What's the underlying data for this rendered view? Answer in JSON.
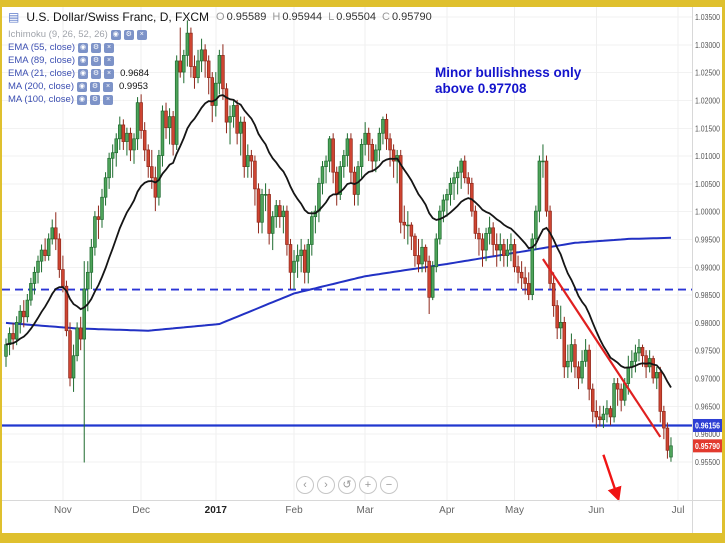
{
  "frame": {
    "border_color": "#dfc02e"
  },
  "icons": {
    "chart": "▤",
    "eye": "◉",
    "settings": "⚙",
    "close": "×"
  },
  "header": {
    "symbol_title": "U.S. Dollar/Swiss Franc, D, FXCM",
    "ohlc": {
      "o_label": "O",
      "o": "0.95589",
      "h_label": "H",
      "h": "0.95944",
      "l_label": "L",
      "l": "0.95504",
      "c_label": "C",
      "c": "0.95790"
    }
  },
  "legend": {
    "rows": [
      {
        "name": "Ichimoku (9, 26, 52, 26)",
        "value": "",
        "muted": true
      },
      {
        "name": "EMA (55, close)",
        "value": ""
      },
      {
        "name": "EMA (89, close)",
        "value": ""
      },
      {
        "name": "EMA (21, close)",
        "value": "0.9684"
      },
      {
        "name": "MA (200, close)",
        "value": "0.9953"
      },
      {
        "name": "MA (100, close)",
        "value": ""
      }
    ]
  },
  "annotation": {
    "line1": "Minor bullishness only",
    "line2": "above 0.97708",
    "color": "#1414cc"
  },
  "nav": {
    "buttons": [
      {
        "name": "scroll-left",
        "glyph": "‹"
      },
      {
        "name": "scroll-right",
        "glyph": "›"
      },
      {
        "name": "reset-scale",
        "glyph": "↺"
      },
      {
        "name": "zoom-in",
        "glyph": "+"
      },
      {
        "name": "zoom-out",
        "glyph": "−"
      }
    ]
  },
  "chart_data": {
    "type": "candlestick",
    "title": "U.S. Dollar/Swiss Franc, D, FXCM",
    "symbol": "USD/CHF",
    "timeframe": "D",
    "y_axis": {
      "min": 0.955,
      "max": 1.035,
      "tick_step": 0.005,
      "tick_labels": [
        "1.03500",
        "1.03000",
        "1.02500",
        "1.02000",
        "1.01500",
        "1.01000",
        "1.00500",
        "1.00000",
        "0.99500",
        "0.99000",
        "0.98500",
        "0.98000",
        "0.97500",
        "0.97000",
        "0.96500",
        "0.96000",
        "0.95500"
      ]
    },
    "x_axis": {
      "month_ticks": [
        {
          "label": "Nov",
          "index": 16
        },
        {
          "label": "Dec",
          "index": 38
        },
        {
          "label": "2017",
          "index": 59,
          "bold": true
        },
        {
          "label": "Feb",
          "index": 81
        },
        {
          "label": "Mar",
          "index": 101
        },
        {
          "label": "Apr",
          "index": 124
        },
        {
          "label": "May",
          "index": 143
        },
        {
          "label": "Jun",
          "index": 166
        },
        {
          "label": "Jul",
          "index": 189
        }
      ]
    },
    "style": {
      "up": {
        "body": "#4ea35a",
        "border": "#1d6b2e"
      },
      "down": {
        "body": "#cf4532",
        "border": "#8f271a"
      }
    },
    "candles": [
      [
        0.974,
        0.9772,
        0.9721,
        0.9761
      ],
      [
        0.9761,
        0.9792,
        0.9742,
        0.9781
      ],
      [
        0.9781,
        0.98,
        0.9752,
        0.9771
      ],
      [
        0.9771,
        0.9812,
        0.976,
        0.9801
      ],
      [
        0.9801,
        0.9832,
        0.9781,
        0.9821
      ],
      [
        0.9821,
        0.9841,
        0.9792,
        0.9811
      ],
      [
        0.9811,
        0.9852,
        0.9801,
        0.9841
      ],
      [
        0.9841,
        0.9881,
        0.9831,
        0.9871
      ],
      [
        0.9871,
        0.9901,
        0.9851,
        0.9891
      ],
      [
        0.9891,
        0.9921,
        0.9871,
        0.9911
      ],
      [
        0.9911,
        0.9941,
        0.9891,
        0.9931
      ],
      [
        0.9931,
        0.9952,
        0.9911,
        0.9921
      ],
      [
        0.9921,
        0.9961,
        0.9912,
        0.9951
      ],
      [
        0.9951,
        0.9986,
        0.9941,
        0.9971
      ],
      [
        0.9971,
        0.9999,
        0.9931,
        0.9951
      ],
      [
        0.9951,
        0.9961,
        0.9881,
        0.9896
      ],
      [
        0.9896,
        0.9921,
        0.9855,
        0.9866
      ],
      [
        0.9866,
        0.9876,
        0.9776,
        0.9786
      ],
      [
        0.9786,
        0.9801,
        0.9686,
        0.9701
      ],
      [
        0.9701,
        0.9761,
        0.9676,
        0.9741
      ],
      [
        0.9741,
        0.9801,
        0.9731,
        0.9791
      ],
      [
        0.9791,
        0.9811,
        0.9751,
        0.9771
      ],
      [
        0.9771,
        0.9911,
        0.9549,
        0.9861
      ],
      [
        0.9861,
        0.9911,
        0.9821,
        0.9891
      ],
      [
        0.9891,
        0.9951,
        0.9861,
        0.9936
      ],
      [
        0.9936,
        1.0001,
        0.9921,
        0.9991
      ],
      [
        0.9991,
        1.0011,
        0.9951,
        0.9986
      ],
      [
        0.9986,
        1.0041,
        0.9971,
        1.0026
      ],
      [
        1.0026,
        1.0071,
        1.0011,
        1.0061
      ],
      [
        1.0061,
        1.0106,
        1.0041,
        1.0096
      ],
      [
        1.0096,
        1.0121,
        1.0061,
        1.0106
      ],
      [
        1.0106,
        1.0141,
        1.0081,
        1.0131
      ],
      [
        1.0131,
        1.0171,
        1.0111,
        1.0156
      ],
      [
        1.0156,
        1.0166,
        1.0111,
        1.0126
      ],
      [
        1.0126,
        1.0151,
        1.0101,
        1.0141
      ],
      [
        1.0141,
        1.0151,
        1.0091,
        1.0111
      ],
      [
        1.0111,
        1.0141,
        1.0086,
        1.0131
      ],
      [
        1.0131,
        1.0206,
        1.0111,
        1.0196
      ],
      [
        1.0196,
        1.0211,
        1.0131,
        1.0146
      ],
      [
        1.0146,
        1.0161,
        1.0091,
        1.0111
      ],
      [
        1.0111,
        1.0121,
        1.0061,
        1.0081
      ],
      [
        1.0081,
        1.0111,
        1.0041,
        1.0061
      ],
      [
        1.0061,
        1.0081,
        1.0001,
        1.0026
      ],
      [
        1.0026,
        1.0111,
        1.0011,
        1.0101
      ],
      [
        1.0101,
        1.0191,
        1.0081,
        1.0181
      ],
      [
        1.0181,
        1.0196,
        1.0131,
        1.0151
      ],
      [
        1.0151,
        1.0186,
        1.0121,
        1.0171
      ],
      [
        1.0171,
        1.0181,
        1.0101,
        1.0121
      ],
      [
        1.0121,
        1.0281,
        1.0111,
        1.0271
      ],
      [
        1.0271,
        1.0331,
        1.0241,
        1.0251
      ],
      [
        1.0251,
        1.0291,
        1.0231,
        1.0281
      ],
      [
        1.0281,
        1.0344,
        1.0261,
        1.0321
      ],
      [
        1.0321,
        1.0331,
        1.0241,
        1.0261
      ],
      [
        1.0261,
        1.0281,
        1.0221,
        1.0241
      ],
      [
        1.0241,
        1.0291,
        1.0231,
        1.0271
      ],
      [
        1.0271,
        1.0311,
        1.0251,
        1.0291
      ],
      [
        1.0291,
        1.0301,
        1.0241,
        1.0271
      ],
      [
        1.0271,
        1.0281,
        1.0211,
        1.0241
      ],
      [
        1.0241,
        1.0251,
        1.0161,
        1.0191
      ],
      [
        1.0191,
        1.0251,
        1.0171,
        1.0231
      ],
      [
        1.0231,
        1.0291,
        1.0211,
        1.0281
      ],
      [
        1.0281,
        1.0301,
        1.0201,
        1.0221
      ],
      [
        1.0221,
        1.0231,
        1.0141,
        1.0161
      ],
      [
        1.0161,
        1.0191,
        1.0121,
        1.0171
      ],
      [
        1.0171,
        1.0201,
        1.0151,
        1.0191
      ],
      [
        1.0191,
        1.0201,
        1.0121,
        1.0141
      ],
      [
        1.0141,
        1.0171,
        1.0101,
        1.0161
      ],
      [
        1.0161,
        1.0171,
        1.0061,
        1.0081
      ],
      [
        1.0081,
        1.0121,
        1.0061,
        1.0101
      ],
      [
        1.0101,
        1.0111,
        1.0061,
        1.0091
      ],
      [
        1.0091,
        1.0101,
        1.0011,
        1.0041
      ],
      [
        1.0041,
        1.0051,
        0.9961,
        0.9981
      ],
      [
        0.9981,
        1.0041,
        0.9961,
        1.0031
      ],
      [
        1.0031,
        1.0051,
        1.0001,
        1.0031
      ],
      [
        1.0031,
        1.0041,
        0.9941,
        0.9961
      ],
      [
        0.9961,
        1.0001,
        0.9931,
        0.9991
      ],
      [
        0.9991,
        1.0021,
        0.9971,
        1.0011
      ],
      [
        1.0011,
        1.0021,
        0.9971,
        0.9991
      ],
      [
        0.9991,
        1.0011,
        0.9961,
        1.0001
      ],
      [
        1.0001,
        1.0011,
        0.9921,
        0.9941
      ],
      [
        0.9941,
        0.9951,
        0.9861,
        0.9891
      ],
      [
        0.9891,
        0.9931,
        0.9861,
        0.9911
      ],
      [
        0.9911,
        0.9941,
        0.9881,
        0.9921
      ],
      [
        0.9921,
        0.9951,
        0.9891,
        0.9931
      ],
      [
        0.9931,
        0.9941,
        0.9871,
        0.9891
      ],
      [
        0.9891,
        0.9951,
        0.9871,
        0.9941
      ],
      [
        0.9941,
        1.0001,
        0.9921,
        0.9991
      ],
      [
        0.9991,
        1.0011,
        0.9961,
        1.0001
      ],
      [
        1.0001,
        1.0061,
        0.9981,
        1.0051
      ],
      [
        1.0051,
        1.0091,
        1.0031,
        1.0081
      ],
      [
        1.0081,
        1.0101,
        1.0051,
        1.0091
      ],
      [
        1.0091,
        1.0136,
        1.0071,
        1.0131
      ],
      [
        1.0131,
        1.0141,
        1.0051,
        1.0071
      ],
      [
        1.0071,
        1.0081,
        1.0011,
        1.0031
      ],
      [
        1.0031,
        1.0091,
        1.0021,
        1.0081
      ],
      [
        1.0081,
        1.0111,
        1.0061,
        1.0101
      ],
      [
        1.0101,
        1.0141,
        1.0081,
        1.0131
      ],
      [
        1.0131,
        1.0141,
        1.0051,
        1.0071
      ],
      [
        1.0071,
        1.0081,
        1.0011,
        1.0031
      ],
      [
        1.0031,
        1.0091,
        1.0011,
        1.0081
      ],
      [
        1.0081,
        1.0131,
        1.0061,
        1.0121
      ],
      [
        1.0121,
        1.0161,
        1.0101,
        1.0141
      ],
      [
        1.0141,
        1.0151,
        1.0091,
        1.0121
      ],
      [
        1.0121,
        1.0131,
        1.0071,
        1.0091
      ],
      [
        1.0091,
        1.0121,
        1.0071,
        1.0111
      ],
      [
        1.0111,
        1.0151,
        1.0091,
        1.0141
      ],
      [
        1.0141,
        1.0171,
        1.0121,
        1.0166
      ],
      [
        1.0166,
        1.0176,
        1.0111,
        1.0131
      ],
      [
        1.0131,
        1.0141,
        1.0081,
        1.0111
      ],
      [
        1.0111,
        1.0121,
        1.0061,
        1.0091
      ],
      [
        1.0091,
        1.0111,
        1.0051,
        1.0101
      ],
      [
        1.0101,
        1.0111,
        0.9961,
        0.9981
      ],
      [
        0.9981,
        1.0011,
        0.9951,
        0.9976
      ],
      [
        0.9976,
        1.0001,
        0.9941,
        0.9976
      ],
      [
        0.9976,
        0.9981,
        0.9931,
        0.9956
      ],
      [
        0.9956,
        0.9961,
        0.9901,
        0.9921
      ],
      [
        0.9921,
        0.9951,
        0.9891,
        0.9906
      ],
      [
        0.9906,
        0.9951,
        0.9891,
        0.9936
      ],
      [
        0.9936,
        0.9941,
        0.9891,
        0.9911
      ],
      [
        0.9911,
        0.9921,
        0.9816,
        0.9846
      ],
      [
        0.9846,
        0.9911,
        0.9841,
        0.9901
      ],
      [
        0.9901,
        0.9961,
        0.9891,
        0.9951
      ],
      [
        0.9951,
        1.0011,
        0.9941,
        1.0001
      ],
      [
        1.0001,
        1.0031,
        0.9981,
        1.0021
      ],
      [
        1.0021,
        1.0041,
        0.9991,
        1.0031
      ],
      [
        1.0031,
        1.0061,
        1.0011,
        1.0051
      ],
      [
        1.0051,
        1.0071,
        1.0021,
        1.0061
      ],
      [
        1.0061,
        1.0081,
        1.0031,
        1.0071
      ],
      [
        1.0071,
        1.0096,
        1.0041,
        1.0091
      ],
      [
        1.0091,
        1.0101,
        1.0051,
        1.0061
      ],
      [
        1.0061,
        1.0071,
        1.0031,
        1.0051
      ],
      [
        1.0051,
        1.0061,
        0.9991,
        1.0001
      ],
      [
        1.0001,
        1.0011,
        0.9951,
        0.9961
      ],
      [
        0.9961,
        0.9971,
        0.9921,
        0.9951
      ],
      [
        0.9951,
        0.9961,
        0.9901,
        0.9931
      ],
      [
        0.9931,
        0.9971,
        0.9911,
        0.9961
      ],
      [
        0.9961,
        0.9991,
        0.9941,
        0.9971
      ],
      [
        0.9971,
        0.9981,
        0.9921,
        0.9941
      ],
      [
        0.9941,
        0.9961,
        0.9901,
        0.9931
      ],
      [
        0.9931,
        0.9961,
        0.9911,
        0.9941
      ],
      [
        0.9941,
        0.9951,
        0.9901,
        0.9921
      ],
      [
        0.9921,
        0.9951,
        0.9901,
        0.9931
      ],
      [
        0.9931,
        0.9961,
        0.9911,
        0.9941
      ],
      [
        0.9941,
        0.9951,
        0.9891,
        0.9901
      ],
      [
        0.9901,
        0.9921,
        0.9871,
        0.9891
      ],
      [
        0.9891,
        0.9911,
        0.9861,
        0.9881
      ],
      [
        0.9881,
        0.9901,
        0.9851,
        0.9871
      ],
      [
        0.9871,
        0.9891,
        0.9841,
        0.9851
      ],
      [
        0.9851,
        0.9961,
        0.9841,
        0.9951
      ],
      [
        0.9951,
        1.0011,
        0.9931,
        1.0001
      ],
      [
        1.0001,
        1.0101,
        0.9981,
        1.0091
      ],
      [
        1.0091,
        1.0121,
        1.0061,
        1.0091
      ],
      [
        1.0091,
        1.0101,
        0.9991,
        1.0001
      ],
      [
        1.0001,
        1.0011,
        0.9861,
        0.9871
      ],
      [
        0.9871,
        0.9891,
        0.9811,
        0.9831
      ],
      [
        0.9831,
        0.9841,
        0.9771,
        0.9791
      ],
      [
        0.9791,
        0.9831,
        0.9771,
        0.9801
      ],
      [
        0.9801,
        0.9811,
        0.9701,
        0.9721
      ],
      [
        0.9721,
        0.9761,
        0.9701,
        0.9731
      ],
      [
        0.9731,
        0.9781,
        0.9711,
        0.9761
      ],
      [
        0.9761,
        0.9771,
        0.9701,
        0.9721
      ],
      [
        0.9721,
        0.9731,
        0.9681,
        0.9701
      ],
      [
        0.9701,
        0.9751,
        0.9691,
        0.9731
      ],
      [
        0.9731,
        0.9771,
        0.9721,
        0.9751
      ],
      [
        0.9751,
        0.9761,
        0.9661,
        0.9681
      ],
      [
        0.9681,
        0.9691,
        0.9621,
        0.9641
      ],
      [
        0.9641,
        0.9661,
        0.9611,
        0.9631
      ],
      [
        0.9631,
        0.9651,
        0.9614,
        0.9626
      ],
      [
        0.9626,
        0.9651,
        0.9611,
        0.9636
      ],
      [
        0.9636,
        0.9661,
        0.9621,
        0.9646
      ],
      [
        0.9646,
        0.9651,
        0.9616,
        0.9631
      ],
      [
        0.9631,
        0.9701,
        0.9621,
        0.9691
      ],
      [
        0.9691,
        0.9701,
        0.9651,
        0.9681
      ],
      [
        0.9681,
        0.9691,
        0.9641,
        0.9661
      ],
      [
        0.9661,
        0.9701,
        0.9651,
        0.9691
      ],
      [
        0.9691,
        0.9741,
        0.9671,
        0.9721
      ],
      [
        0.9721,
        0.9751,
        0.9701,
        0.9731
      ],
      [
        0.9731,
        0.9761,
        0.9711,
        0.9746
      ],
      [
        0.9746,
        0.9771,
        0.9731,
        0.9756
      ],
      [
        0.9756,
        0.9761,
        0.9721,
        0.9741
      ],
      [
        0.9741,
        0.9751,
        0.9701,
        0.9721
      ],
      [
        0.9721,
        0.9751,
        0.9711,
        0.9736
      ],
      [
        0.9736,
        0.9741,
        0.9691,
        0.9701
      ],
      [
        0.9701,
        0.9721,
        0.9681,
        0.9711
      ],
      [
        0.9711,
        0.9721,
        0.9621,
        0.9641
      ],
      [
        0.9641,
        0.9651,
        0.9591,
        0.9611
      ],
      [
        0.9611,
        0.9621,
        0.9556,
        0.9571
      ],
      [
        0.95589,
        0.95944,
        0.95504,
        0.9579
      ]
    ],
    "overlays": {
      "ema21": {
        "name": "EMA (21, close)",
        "period": 21,
        "color": "#151515",
        "last_value": 0.9684
      },
      "ma200": {
        "name": "MA (200, close)",
        "period": 200,
        "color": "#2231c4",
        "last_value": 0.9953,
        "anchors": [
          [
            0,
            0.98
          ],
          [
            20,
            0.979
          ],
          [
            40,
            0.9786
          ],
          [
            60,
            0.9798
          ],
          [
            81,
            0.9853
          ],
          [
            101,
            0.9884
          ],
          [
            124,
            0.9906
          ],
          [
            143,
            0.9926
          ],
          [
            160,
            0.9944
          ],
          [
            175,
            0.9951
          ],
          [
            187,
            0.9953
          ]
        ]
      }
    },
    "levels": [
      {
        "name": "dashed-resistance-line",
        "price": 0.986,
        "style": "dashed",
        "color": "#2b35d6"
      },
      {
        "name": "support-line",
        "price": 0.96156,
        "style": "solid",
        "color": "#2038cf"
      }
    ],
    "drawings": {
      "trendline": {
        "from_index": 151,
        "from_price": 0.9915,
        "to_index": 184,
        "to_price": 0.9595,
        "color": "#e02020"
      },
      "arrow": {
        "from_index": 168,
        "from_price": 0.9563,
        "to_index": 172,
        "to_price": 0.9487,
        "color": "#f01414"
      }
    },
    "last_price_tags": [
      {
        "text": "0.96156",
        "price": 0.96156,
        "bg": "#2e3fd4"
      },
      {
        "text": "0.95790",
        "price": 0.9579,
        "bg": "#e23a2e"
      }
    ]
  }
}
